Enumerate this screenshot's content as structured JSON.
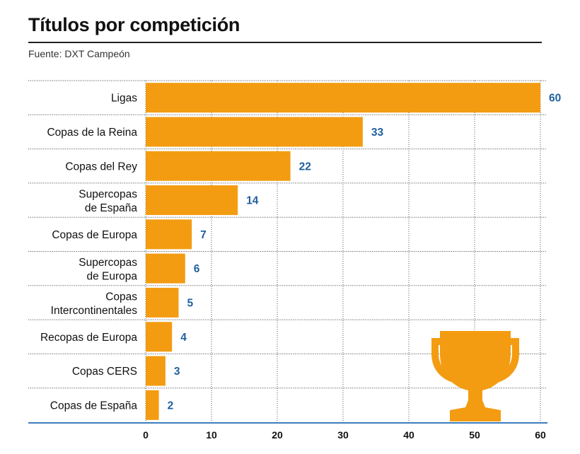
{
  "header": {
    "title": "Títulos por competición",
    "source": "Fuente: DXT Campeón"
  },
  "colors": {
    "bar": "#f39c12",
    "value_label": "#1f5f9e",
    "axis": "#3b7dbf",
    "trophy": "#f39c12"
  },
  "icons": {
    "decoration": "trophy-icon"
  },
  "chart_data": {
    "type": "bar",
    "orientation": "horizontal",
    "title": "Títulos por competición",
    "categories": [
      "Ligas",
      "Copas de la Reina",
      "Copas del Rey",
      "Supercopas de España",
      "Copas de Europa",
      "Supercopas de Europa",
      "Copas Intercontinentales",
      "Recopas de Europa",
      "Copas CERS",
      "Copas de España"
    ],
    "category_lines": [
      [
        "Ligas"
      ],
      [
        "Copas de la Reina"
      ],
      [
        "Copas del Rey"
      ],
      [
        "Supercopas",
        "de España"
      ],
      [
        "Copas de Europa"
      ],
      [
        "Supercopas",
        "de Europa"
      ],
      [
        "Copas",
        "Intercontinentales"
      ],
      [
        "Recopas de Europa"
      ],
      [
        "Copas CERS"
      ],
      [
        "Copas de España"
      ]
    ],
    "values": [
      60,
      33,
      22,
      14,
      7,
      6,
      5,
      4,
      3,
      2
    ],
    "xlim": [
      0,
      60
    ],
    "xticks": [
      0,
      10,
      20,
      30,
      40,
      50,
      60
    ],
    "xlabel": "",
    "ylabel": "",
    "grid": true,
    "grid_style": "dotted",
    "legend": false
  }
}
